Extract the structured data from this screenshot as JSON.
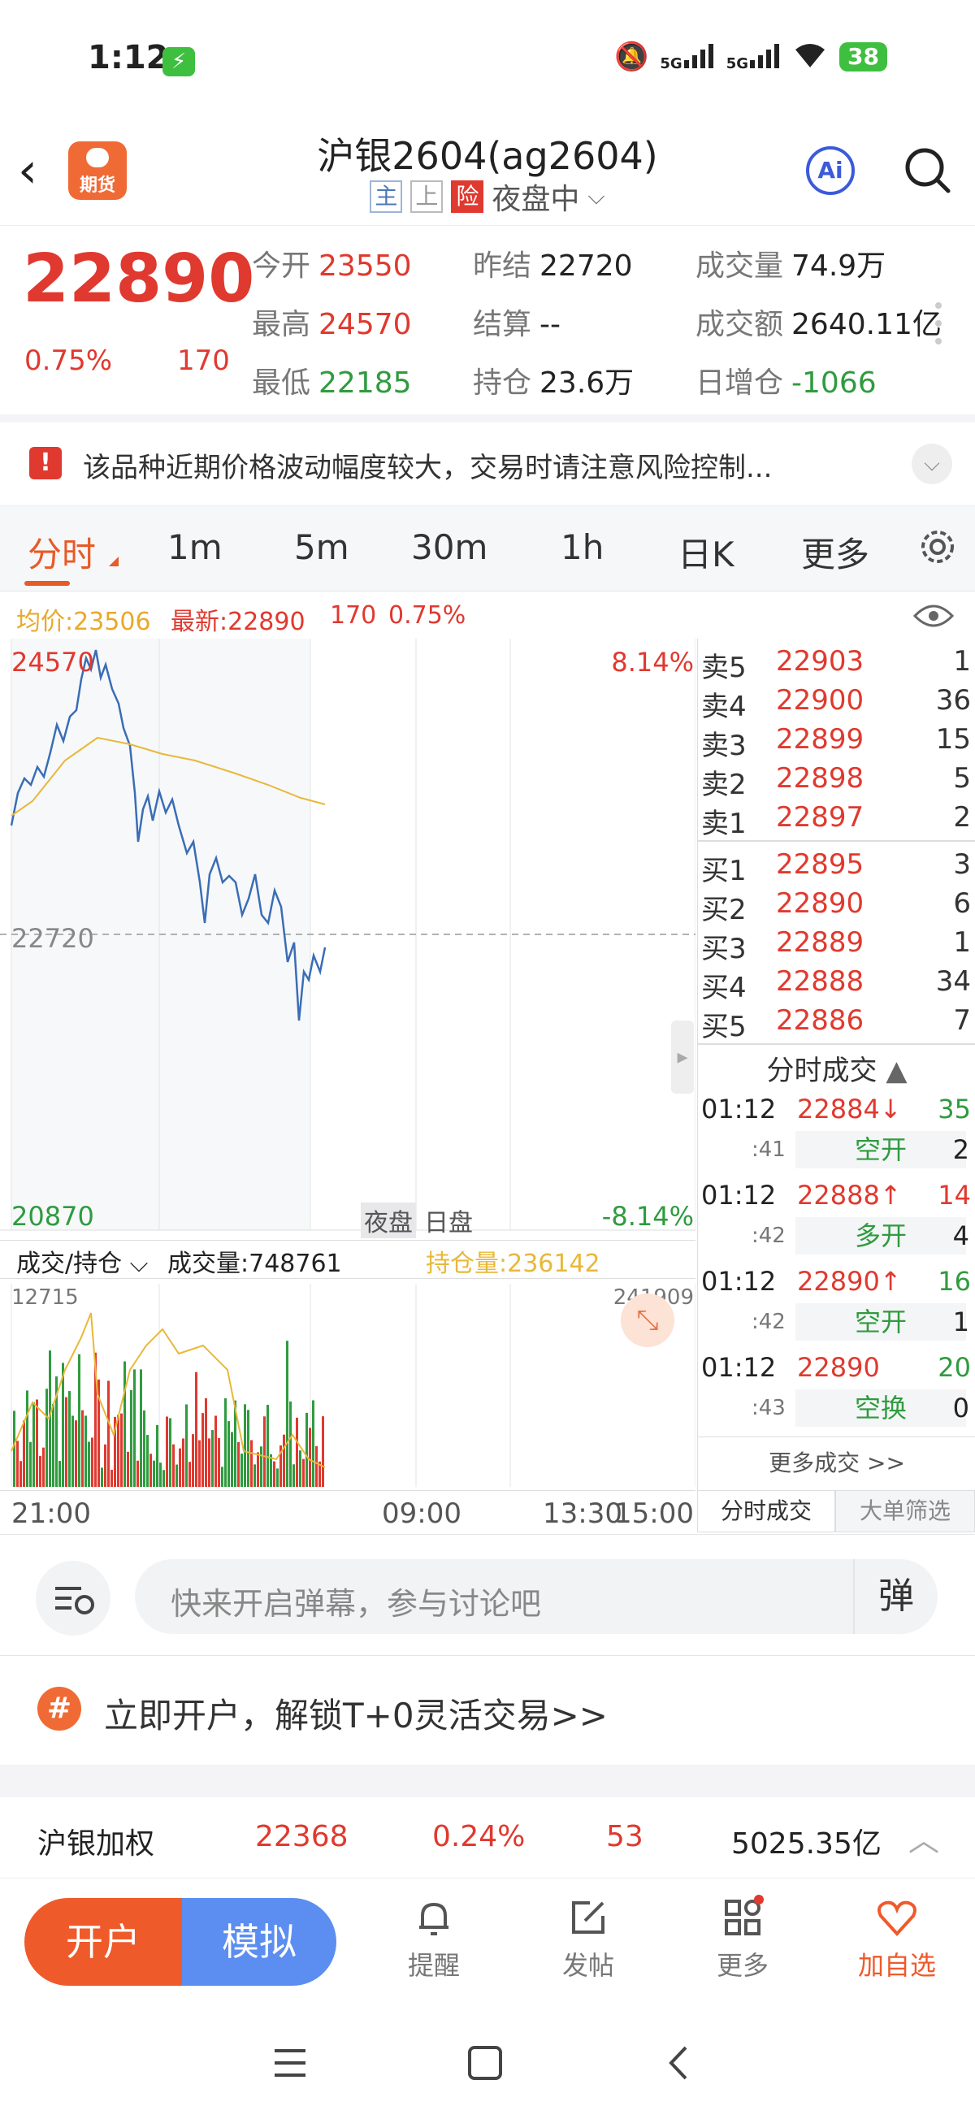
{
  "status": {
    "time": "1:12",
    "battery": "38",
    "signal1": "5G",
    "signal2": "5G"
  },
  "header": {
    "title": "沪银2604(ag2604)",
    "logo_text": "期货",
    "tags": [
      "主",
      "上",
      "险"
    ],
    "session": "夜盘中",
    "ai_label": "Ai"
  },
  "quote": {
    "price": "22890",
    "pct": "0.75%",
    "change": "170",
    "fields": [
      {
        "k": "今开",
        "v": "23550",
        "color": "red"
      },
      {
        "k": "昨结",
        "v": "22720",
        "color": "dark"
      },
      {
        "k": "成交量",
        "v": "74.9万",
        "color": "dark"
      },
      {
        "k": "最高",
        "v": "24570",
        "color": "red"
      },
      {
        "k": "结算",
        "v": "--",
        "color": "dark"
      },
      {
        "k": "成交额",
        "v": "2640.11亿",
        "color": "dark"
      },
      {
        "k": "最低",
        "v": "22185",
        "color": "green"
      },
      {
        "k": "持仓",
        "v": "23.6万",
        "color": "dark"
      },
      {
        "k": "日增仓",
        "v": "-1066",
        "color": "green"
      }
    ]
  },
  "warning": {
    "text": "该品种近期价格波动幅度较大，交易时请注意风险控制..."
  },
  "tabs": [
    "分时",
    "1m",
    "5m",
    "30m",
    "1h",
    "日K",
    "更多"
  ],
  "legend": {
    "avg": "均价:23506",
    "latest": "最新:22890",
    "change": "170",
    "pct": "0.75%"
  },
  "chart": {
    "y_top": "24570",
    "y_mid": "22720",
    "y_bottom": "20870",
    "pct_top": "8.14%",
    "pct_bottom": "-8.14%",
    "session_night": "夜盘",
    "session_day": "日盘",
    "vol_selector": "成交/持仓",
    "volume_label": "成交量:748761",
    "oi_label": "持仓量:236142",
    "vol_max": "12715",
    "oi_max": "241909",
    "x_labels": [
      "21:00",
      "09:00",
      "13:30",
      "15:00"
    ],
    "colors": {
      "price": "#3a6db5",
      "avg": "#e8b83a",
      "up": "#e0392f",
      "down": "#2f9b3f"
    }
  },
  "order_book": {
    "asks": [
      {
        "l": "卖5",
        "p": "22903",
        "q": "1"
      },
      {
        "l": "卖4",
        "p": "22900",
        "q": "36"
      },
      {
        "l": "卖3",
        "p": "22899",
        "q": "15"
      },
      {
        "l": "卖2",
        "p": "22898",
        "q": "5"
      },
      {
        "l": "卖1",
        "p": "22897",
        "q": "2"
      }
    ],
    "bids": [
      {
        "l": "买1",
        "p": "22895",
        "q": "3"
      },
      {
        "l": "买2",
        "p": "22890",
        "q": "6"
      },
      {
        "l": "买3",
        "p": "22889",
        "q": "1"
      },
      {
        "l": "买4",
        "p": "22888",
        "q": "34"
      },
      {
        "l": "买5",
        "p": "22886",
        "q": "7"
      }
    ],
    "trades_title": "分时成交",
    "trades": [
      {
        "t": "01:12",
        "s": ":41",
        "p": "22884↓",
        "pc": "red",
        "v": "35",
        "vc": "green",
        "tag": "空开",
        "n": "2"
      },
      {
        "t": "01:12",
        "s": ":42",
        "p": "22888↑",
        "pc": "red",
        "v": "14",
        "vc": "red",
        "tag": "多开",
        "n": "4"
      },
      {
        "t": "01:12",
        "s": ":42",
        "p": "22890↑",
        "pc": "red",
        "v": "16",
        "vc": "green",
        "tag": "空开",
        "n": "1"
      },
      {
        "t": "01:12",
        "s": ":43",
        "p": "22890",
        "pc": "red",
        "v": "20",
        "vc": "green",
        "tag": "空换",
        "n": "0"
      }
    ],
    "more": "更多成交 >>",
    "tab1": "分时成交",
    "tab2": "大单筛选"
  },
  "comment": {
    "placeholder": "快来开启弹幕，参与讨论吧",
    "danmu": "弹"
  },
  "promo": {
    "icon": "#",
    "text": "立即开户，解锁T+0灵活交易>>"
  },
  "index_row": {
    "name": "沪银加权",
    "price": "22368",
    "pct": "0.24%",
    "change": "53",
    "amount": "5025.35亿"
  },
  "nav": {
    "open": "开户",
    "sim": "模拟",
    "remind": "提醒",
    "post": "发帖",
    "more": "更多",
    "watch": "加自选"
  }
}
